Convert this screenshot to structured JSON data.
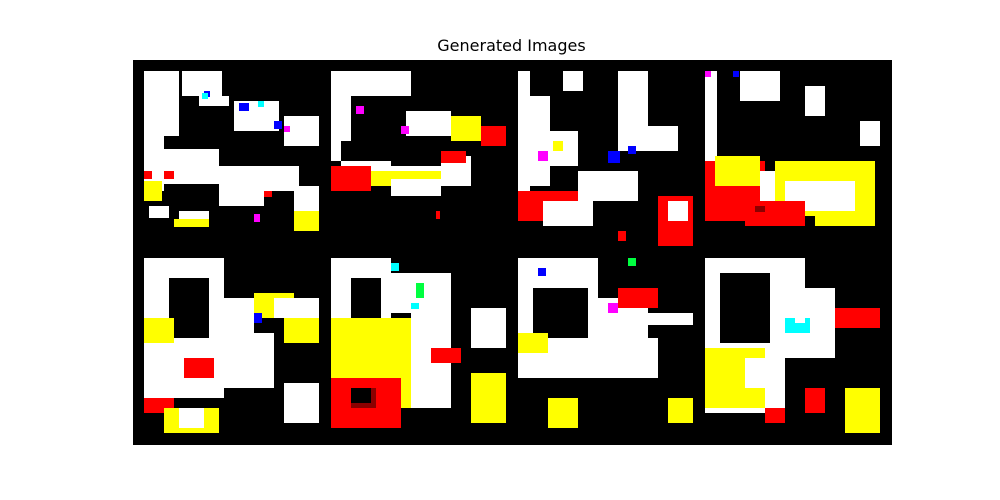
{
  "figure": {
    "title": "Generated Images",
    "background": "#ffffff",
    "panel_background": "#000000"
  },
  "grid": {
    "rows": 2,
    "cols": 4,
    "tile_resolution": 32,
    "palette": {
      "black": "#000000",
      "white": "#ffffff",
      "red": "#ff0000",
      "yellow": "#ffff00",
      "blue": "#0000ff",
      "cyan": "#00ffff",
      "magenta": "#ff00ff",
      "green": "#00ff40",
      "dark_red": "#8b0000"
    },
    "images": [
      {
        "id": "image-1"
      },
      {
        "id": "image-2"
      },
      {
        "id": "image-3"
      },
      {
        "id": "image-4"
      },
      {
        "id": "image-5"
      },
      {
        "id": "image-6"
      },
      {
        "id": "image-7"
      },
      {
        "id": "image-8"
      }
    ]
  }
}
